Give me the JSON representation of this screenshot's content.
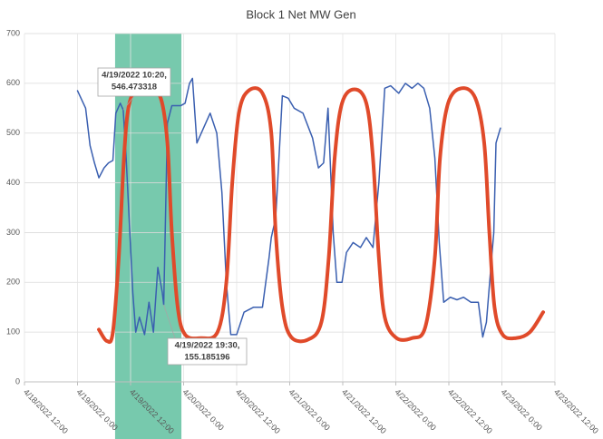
{
  "chart_data": {
    "type": "line",
    "title": "Block 1 Net MW Gen",
    "xlim": [
      "4/18/2022 12:00",
      "4/23/2022 12:00"
    ],
    "xticks": [
      "4/18/2022 12:00",
      "4/19/2022 0:00",
      "4/19/2022 12:00",
      "4/20/2022 0:00",
      "4/20/2022 12:00",
      "4/21/2022 0:00",
      "4/21/2022 12:00",
      "4/22/2022 0:00",
      "4/22/2022 12:00",
      "4/23/2022 0:00",
      "4/23/2022 12:00"
    ],
    "ylim": [
      0,
      700
    ],
    "yticks": [
      0,
      100,
      200,
      300,
      400,
      500,
      600,
      700
    ],
    "grid": true,
    "highlight": {
      "x": [
        "4/19/2022 8:30",
        "4/19/2022 23:30"
      ],
      "color": "#5fbf9f"
    },
    "series": [
      {
        "color": "#3a5fb0",
        "smooth": false,
        "x": [
          "4/19/2022 0:00",
          "4/19/2022 1:50",
          "4/19/2022 2:50",
          "4/19/2022 3:50",
          "4/19/2022 4:50",
          "4/19/2022 6:00",
          "4/19/2022 7:00",
          "4/19/2022 8:00",
          "4/19/2022 8:40",
          "4/19/2022 9:40",
          "4/19/2022 10:20",
          "4/19/2022 11:00",
          "4/19/2022 11:40",
          "4/19/2022 12:30",
          "4/19/2022 13:10",
          "4/19/2022 14:00",
          "4/19/2022 15:10",
          "4/19/2022 16:10",
          "4/19/2022 17:10",
          "4/19/2022 18:10",
          "4/19/2022 19:10",
          "4/19/2022 19:30",
          "4/19/2022 20:20",
          "4/19/2022 21:20",
          "4/19/2022 22:20",
          "4/19/2022 23:20",
          "4/20/2022 0:20",
          "4/20/2022 1:20",
          "4/20/2022 2:00",
          "4/20/2022 3:00",
          "4/20/2022 4:30",
          "4/20/2022 6:00",
          "4/20/2022 7:30",
          "4/20/2022 8:40",
          "4/20/2022 9:40",
          "4/20/2022 10:40",
          "4/20/2022 12:00",
          "4/20/2022 13:40",
          "4/20/2022 15:50",
          "4/20/2022 17:50",
          "4/20/2022 19:20",
          "4/20/2022 19:50",
          "4/20/2022 20:50",
          "4/20/2022 22:20",
          "4/20/2022 23:40",
          "4/21/2022 1:00",
          "4/21/2022 3:00",
          "4/21/2022 5:10",
          "4/21/2022 6:30",
          "4/21/2022 7:40",
          "4/21/2022 8:40",
          "4/21/2022 9:50",
          "4/21/2022 10:40",
          "4/21/2022 11:50",
          "4/21/2022 12:50",
          "4/21/2022 14:20",
          "4/21/2022 16:00",
          "4/21/2022 17:20",
          "4/21/2022 18:50",
          "4/21/2022 20:10",
          "4/21/2022 21:30",
          "4/21/2022 22:50",
          "4/22/2022 0:40",
          "4/22/2022 2:10",
          "4/22/2022 3:40",
          "4/22/2022 5:00",
          "4/22/2022 6:20",
          "4/22/2022 7:40",
          "4/22/2022 8:50",
          "4/22/2022 9:50",
          "4/22/2022 10:50",
          "4/22/2022 12:20",
          "4/22/2022 13:50",
          "4/22/2022 15:20",
          "4/22/2022 17:00",
          "4/22/2022 18:40",
          "4/22/2022 19:40",
          "4/22/2022 20:30",
          "4/22/2022 21:30",
          "4/22/2022 22:10",
          "4/22/2022 22:40",
          "4/22/2022 23:40"
        ],
        "values": [
          585,
          550,
          475,
          440,
          410,
          430,
          440,
          445,
          540,
          560,
          546.473318,
          450,
          330,
          180,
          100,
          130,
          95,
          160,
          100,
          230,
          180,
          155.185196,
          520,
          555,
          555,
          555,
          560,
          600,
          610,
          480,
          510,
          540,
          500,
          380,
          200,
          95,
          95,
          140,
          150,
          150,
          250,
          290,
          330,
          575,
          570,
          550,
          540,
          490,
          430,
          440,
          550,
          300,
          200,
          200,
          260,
          280,
          270,
          290,
          270,
          400,
          590,
          595,
          580,
          600,
          590,
          600,
          590,
          550,
          450,
          280,
          160,
          170,
          165,
          170,
          160,
          160,
          90,
          120,
          230,
          300,
          480,
          510
        ]
      },
      {
        "color": "#e04a2a",
        "smooth": true,
        "x": [
          "4/19/2022 4:50",
          "4/19/2022 6:40",
          "4/19/2022 8:00",
          "4/19/2022 9:20",
          "4/19/2022 10:30",
          "4/19/2022 11:30",
          "4/19/2022 13:10",
          "4/19/2022 16:10",
          "4/19/2022 18:50",
          "4/19/2022 20:20",
          "4/19/2022 21:20",
          "4/19/2022 22:40",
          "4/20/2022 0:20",
          "4/20/2022 3:50",
          "4/20/2022 7:40",
          "4/20/2022 9:40",
          "4/20/2022 11:00",
          "4/20/2022 12:30",
          "4/20/2022 14:40",
          "4/20/2022 17:50",
          "4/20/2022 19:50",
          "4/20/2022 20:50",
          "4/20/2022 22:20",
          "4/21/2022 0:20",
          "4/21/2022 4:10",
          "4/21/2022 7:10",
          "4/21/2022 8:50",
          "4/21/2022 10:10",
          "4/21/2022 11:50",
          "4/21/2022 14:40",
          "4/21/2022 17:20",
          "4/21/2022 18:50",
          "4/21/2022 20:10",
          "4/21/2022 21:30",
          "4/22/2022 0:10",
          "4/22/2022 3:40",
          "4/22/2022 6:40",
          "4/22/2022 8:50",
          "4/22/2022 10:00",
          "4/22/2022 11:50",
          "4/22/2022 14:50",
          "4/22/2022 18:00",
          "4/22/2022 20:00",
          "4/22/2022 21:10",
          "4/22/2022 22:20",
          "4/23/2022 0:10",
          "4/23/2022 3:10",
          "4/23/2022 6:20",
          "4/23/2022 9:20"
        ],
        "values": [
          105,
          82,
          100,
          250,
          450,
          550,
          585,
          590,
          570,
          480,
          300,
          150,
          95,
          88,
          100,
          200,
          400,
          540,
          585,
          580,
          500,
          300,
          150,
          90,
          85,
          120,
          250,
          450,
          560,
          588,
          560,
          450,
          250,
          130,
          88,
          88,
          110,
          250,
          450,
          560,
          590,
          570,
          480,
          300,
          150,
          95,
          88,
          100,
          140
        ]
      }
    ],
    "annotations": [
      {
        "x": "4/19/2022 10:20",
        "y": 546.473318,
        "text": [
          "4/19/2022 10:20,",
          "546.473318"
        ]
      },
      {
        "x": "4/19/2022 19:30",
        "y": 155.185196,
        "text": [
          "4/19/2022 19:30,",
          "155.185196"
        ]
      }
    ]
  }
}
